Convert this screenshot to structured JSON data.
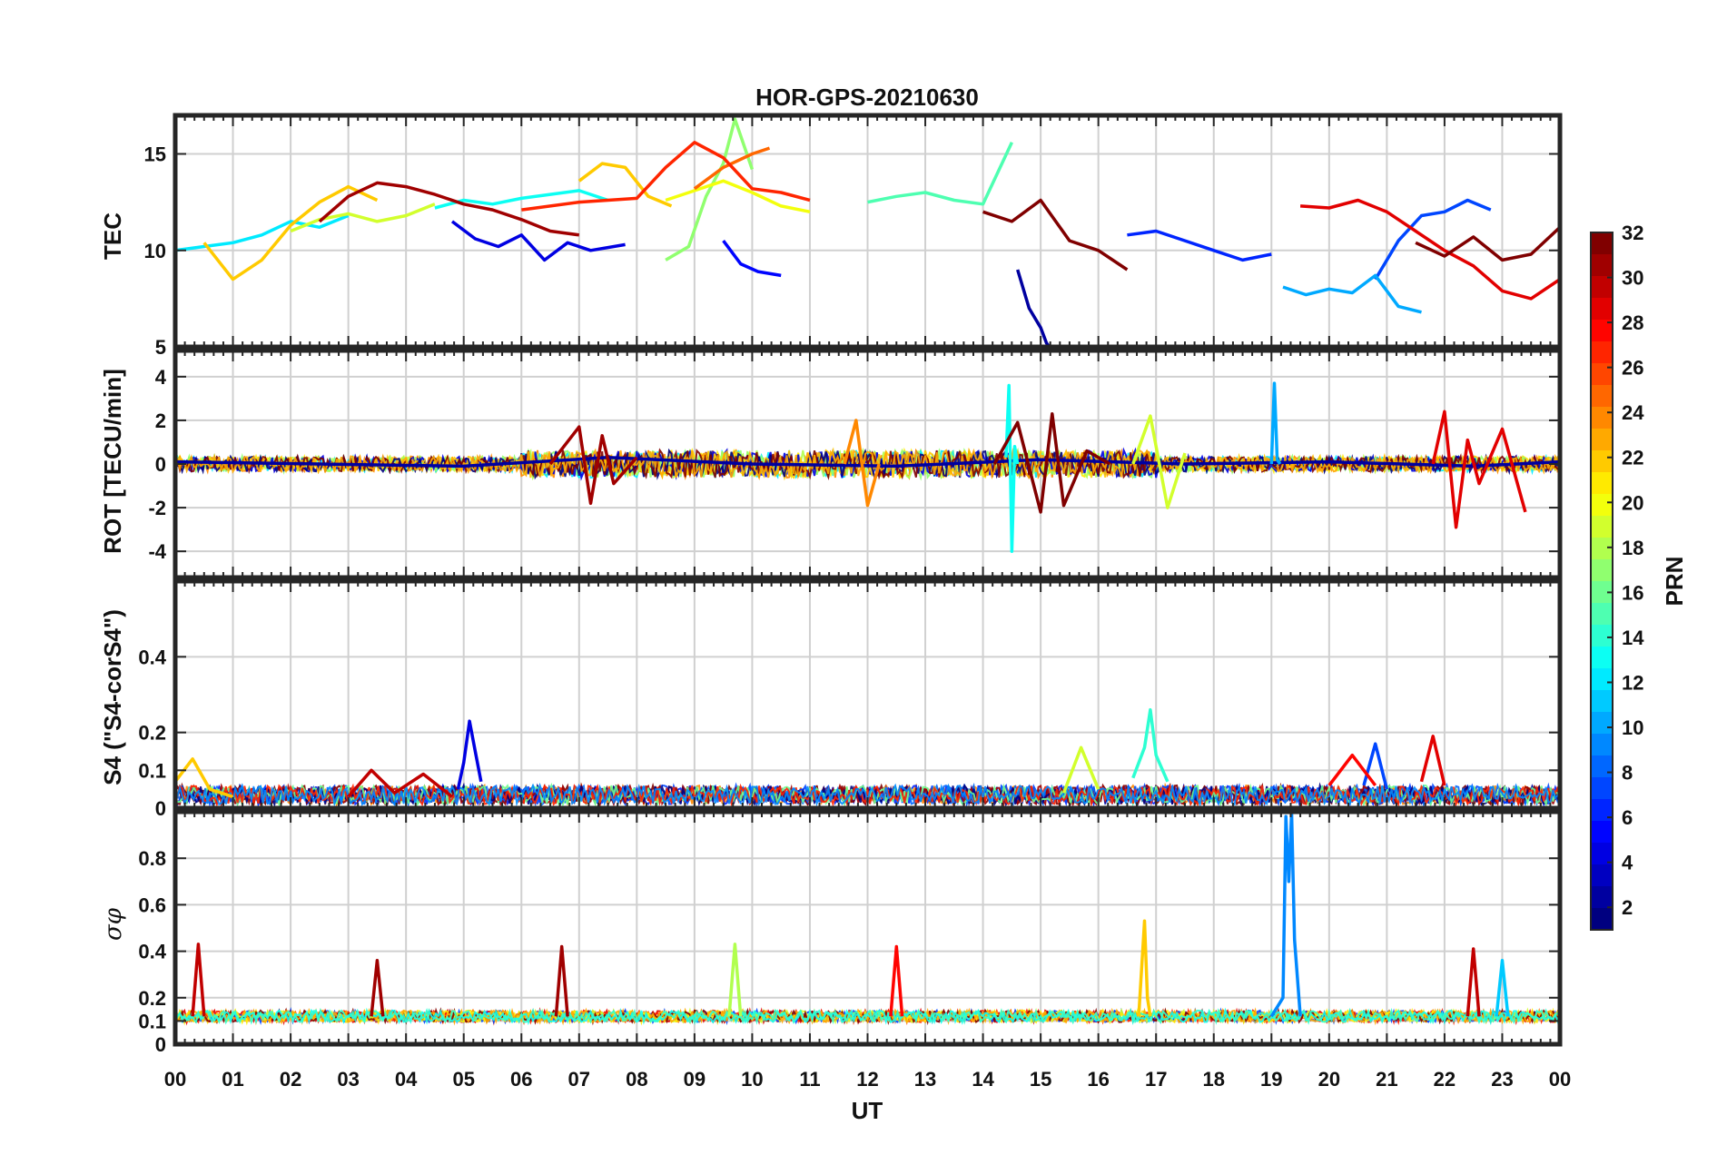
{
  "chart_data": {
    "type": "line",
    "title": "HOR-GPS-20210630",
    "xlabel": "UT",
    "x_ticks": [
      "00",
      "01",
      "02",
      "03",
      "04",
      "05",
      "06",
      "07",
      "08",
      "09",
      "10",
      "11",
      "12",
      "13",
      "14",
      "15",
      "16",
      "17",
      "18",
      "19",
      "20",
      "21",
      "22",
      "23",
      "00"
    ],
    "xlim": [
      0,
      24
    ],
    "grid": true,
    "panels": [
      {
        "id": "tec",
        "ylabel": "TEC",
        "ylim": [
          5,
          17
        ],
        "yticks": [
          5,
          10,
          15
        ],
        "series": [
          {
            "prn": 2,
            "x": [
              14.6,
              14.8,
              15.0,
              15.1,
              15.15
            ],
            "y": [
              9.0,
              7.0,
              6.0,
              5.2,
              5.0
            ]
          },
          {
            "prn": 4,
            "x": [
              4.8,
              5.2,
              5.6,
              6.0,
              6.4,
              6.8,
              7.2,
              7.8
            ],
            "y": [
              11.5,
              10.6,
              10.2,
              10.8,
              9.5,
              10.4,
              10.0,
              10.3
            ]
          },
          {
            "prn": 5,
            "x": [
              9.5,
              9.8,
              10.1,
              10.5
            ],
            "y": [
              10.5,
              9.3,
              8.9,
              8.7
            ]
          },
          {
            "prn": 6,
            "x": [
              16.5,
              17.0,
              17.5,
              18.0,
              18.5,
              19.0
            ],
            "y": [
              10.8,
              11.0,
              10.5,
              10.0,
              9.5,
              9.8
            ]
          },
          {
            "prn": 7,
            "x": [
              20.8,
              21.2,
              21.6,
              22.0,
              22.4,
              22.8
            ],
            "y": [
              8.5,
              10.5,
              11.8,
              12.0,
              12.6,
              12.1
            ]
          },
          {
            "prn": 10,
            "x": [
              19.2,
              19.6,
              20.0,
              20.4,
              20.8,
              21.2,
              21.6
            ],
            "y": [
              8.1,
              7.7,
              8.0,
              7.8,
              8.7,
              7.1,
              6.8
            ]
          },
          {
            "prn": 12,
            "x": [
              0.0,
              0.5,
              1.0,
              1.5,
              2.0,
              2.5,
              3.0
            ],
            "y": [
              10.0,
              10.2,
              10.4,
              10.8,
              11.5,
              11.2,
              11.8
            ]
          },
          {
            "prn": 13,
            "x": [
              4.5,
              5.0,
              5.5,
              6.0,
              6.5,
              7.0,
              7.5
            ],
            "y": [
              12.2,
              12.6,
              12.4,
              12.7,
              12.9,
              13.1,
              12.6
            ]
          },
          {
            "prn": 15,
            "x": [
              12.0,
              12.5,
              13.0,
              13.5,
              14.0,
              14.5
            ],
            "y": [
              12.5,
              12.8,
              13.0,
              12.6,
              12.4,
              15.6
            ]
          },
          {
            "prn": 17,
            "x": [
              8.5,
              8.9,
              9.2,
              9.5,
              9.7,
              10.0
            ],
            "y": [
              9.5,
              10.2,
              12.8,
              14.5,
              16.8,
              14.2
            ]
          },
          {
            "prn": 19,
            "x": [
              2.0,
              2.5,
              3.0,
              3.5,
              4.0,
              4.5
            ],
            "y": [
              11.0,
              11.6,
              11.9,
              11.5,
              11.8,
              12.4
            ]
          },
          {
            "prn": 20,
            "x": [
              8.5,
              9.0,
              9.5,
              10.0,
              10.5,
              11.0
            ],
            "y": [
              12.6,
              13.1,
              13.6,
              13.0,
              12.3,
              12.0
            ]
          },
          {
            "prn": 22,
            "x": [
              0.5,
              1.0,
              1.5,
              2.0,
              2.5,
              3.0,
              3.5
            ],
            "y": [
              10.4,
              8.5,
              9.5,
              11.3,
              12.5,
              13.3,
              12.6
            ]
          },
          {
            "prn": 22,
            "x": [
              7.0,
              7.4,
              7.8,
              8.2,
              8.6
            ],
            "y": [
              13.6,
              14.5,
              14.3,
              12.8,
              12.3
            ]
          },
          {
            "prn": 25,
            "x": [
              9.0,
              9.5,
              10.0,
              10.3
            ],
            "y": [
              13.2,
              14.3,
              15.0,
              15.3
            ]
          },
          {
            "prn": 27,
            "x": [
              6.0,
              7.0,
              8.0,
              8.5,
              9.0,
              9.5,
              10.0,
              10.5,
              11.0
            ],
            "y": [
              12.1,
              12.5,
              12.7,
              14.3,
              15.6,
              14.8,
              13.2,
              13.0,
              12.6
            ]
          },
          {
            "prn": 29,
            "x": [
              19.5,
              20.0,
              20.5,
              21.0,
              21.5,
              22.0,
              22.5,
              23.0,
              23.5,
              24.0
            ],
            "y": [
              12.3,
              12.2,
              12.6,
              12.0,
              11.0,
              10.0,
              9.2,
              7.9,
              7.5,
              8.5
            ]
          },
          {
            "prn": 31,
            "x": [
              2.5,
              3.0,
              3.5,
              4.0,
              4.5,
              5.0,
              5.5,
              6.0,
              6.5,
              7.0
            ],
            "y": [
              11.5,
              12.8,
              13.5,
              13.3,
              12.9,
              12.4,
              12.1,
              11.6,
              11.0,
              10.8
            ]
          },
          {
            "prn": 32,
            "x": [
              14.0,
              14.5,
              15.0,
              15.5,
              16.0,
              16.5
            ],
            "y": [
              12.0,
              11.5,
              12.6,
              10.5,
              10.0,
              9.0
            ]
          },
          {
            "prn": 32,
            "x": [
              21.5,
              22.0,
              22.5,
              23.0,
              23.5,
              24.0
            ],
            "y": [
              10.4,
              9.7,
              10.7,
              9.5,
              9.8,
              11.2
            ]
          }
        ]
      },
      {
        "id": "rot",
        "ylabel": "ROT [TECU/min]",
        "ylim": [
          -5.2,
          5.2
        ],
        "yticks": [
          -4,
          -2,
          0,
          2,
          4
        ],
        "series": [
          {
            "prn": 2,
            "x": [
              0.0,
              2.5,
              5.0,
              7.5,
              10.0,
              12.5,
              15.0,
              17.5,
              20.0,
              22.5,
              24.0
            ],
            "y": [
              0.1,
              0.0,
              -0.1,
              0.3,
              0.0,
              -0.1,
              0.2,
              0.0,
              0.1,
              -0.1,
              0.1
            ]
          },
          {
            "prn": 13,
            "x": [
              14.4,
              14.45,
              14.5,
              14.55,
              14.6
            ],
            "y": [
              0.3,
              3.6,
              -4.0,
              0.8,
              0.0
            ]
          },
          {
            "prn": 10,
            "x": [
              19.0,
              19.05,
              19.1,
              19.15
            ],
            "y": [
              0.0,
              3.7,
              0.2,
              0.0
            ]
          },
          {
            "prn": 31,
            "x": [
              6.5,
              7.0,
              7.2,
              7.4,
              7.6,
              8.0
            ],
            "y": [
              0.0,
              1.7,
              -1.8,
              1.3,
              -0.9,
              0.3
            ]
          },
          {
            "prn": 32,
            "x": [
              14.2,
              14.6,
              15.0,
              15.2,
              15.4,
              15.8,
              16.2
            ],
            "y": [
              0.0,
              1.9,
              -2.2,
              2.3,
              -1.9,
              0.6,
              0.0
            ]
          },
          {
            "prn": 19,
            "x": [
              16.6,
              16.9,
              17.2,
              17.5
            ],
            "y": [
              0.0,
              2.2,
              -2.0,
              0.5
            ]
          },
          {
            "prn": 24,
            "x": [
              11.6,
              11.8,
              12.0,
              12.2
            ],
            "y": [
              0.0,
              2.0,
              -1.9,
              0.0
            ]
          },
          {
            "prn": 29,
            "x": [
              21.8,
              22.0,
              22.2,
              22.4,
              22.6,
              23.0,
              23.4
            ],
            "y": [
              0.0,
              2.4,
              -2.9,
              1.1,
              -0.9,
              1.6,
              -2.2
            ]
          }
        ]
      },
      {
        "id": "s4",
        "ylabel": "S4 (\"S4-corS4\")",
        "ylim": [
          0,
          0.6
        ],
        "yticks": [
          0,
          0.1,
          0.2,
          0.4
        ],
        "series": [
          {
            "prn": 4,
            "x": [
              4.9,
              5.0,
              5.1,
              5.2,
              5.3
            ],
            "y": [
              0.05,
              0.12,
              0.23,
              0.15,
              0.07
            ]
          },
          {
            "prn": 14,
            "x": [
              16.6,
              16.8,
              16.9,
              17.0,
              17.2
            ],
            "y": [
              0.08,
              0.16,
              0.26,
              0.14,
              0.07
            ]
          },
          {
            "prn": 29,
            "x": [
              21.6,
              21.8,
              22.0
            ],
            "y": [
              0.07,
              0.19,
              0.06
            ]
          },
          {
            "prn": 7,
            "x": [
              20.6,
              20.8,
              21.0
            ],
            "y": [
              0.06,
              0.17,
              0.05
            ]
          },
          {
            "prn": 22,
            "x": [
              0.0,
              0.3,
              0.6,
              1.0
            ],
            "y": [
              0.07,
              0.13,
              0.05,
              0.03
            ]
          },
          {
            "prn": 30,
            "x": [
              3.0,
              3.4,
              3.8,
              4.3,
              4.8
            ],
            "y": [
              0.03,
              0.1,
              0.04,
              0.09,
              0.03
            ]
          },
          {
            "prn": 19,
            "x": [
              15.4,
              15.7,
              16.0
            ],
            "y": [
              0.04,
              0.16,
              0.05
            ]
          },
          {
            "prn": 28,
            "x": [
              20.0,
              20.4,
              20.8
            ],
            "y": [
              0.06,
              0.14,
              0.06
            ]
          }
        ]
      },
      {
        "id": "sigma_phi",
        "ylabel": "σφ",
        "ylim": [
          0,
          1.0
        ],
        "yticks": [
          0,
          0.1,
          0.2,
          0.4,
          0.6,
          0.8
        ],
        "series": [
          {
            "prn": 9,
            "x": [
              19.0,
              19.2,
              19.25,
              19.3,
              19.35,
              19.4,
              19.5
            ],
            "y": [
              0.12,
              0.2,
              0.98,
              0.7,
              1.0,
              0.45,
              0.12
            ]
          },
          {
            "prn": 22,
            "x": [
              16.7,
              16.8,
              16.85,
              16.9
            ],
            "y": [
              0.12,
              0.53,
              0.2,
              0.12
            ]
          },
          {
            "prn": 30,
            "x": [
              0.3,
              0.4,
              0.5
            ],
            "y": [
              0.12,
              0.43,
              0.12
            ]
          },
          {
            "prn": 31,
            "x": [
              3.4,
              3.5,
              3.6
            ],
            "y": [
              0.12,
              0.36,
              0.12
            ]
          },
          {
            "prn": 31,
            "x": [
              6.6,
              6.7,
              6.8
            ],
            "y": [
              0.12,
              0.42,
              0.12
            ]
          },
          {
            "prn": 28,
            "x": [
              12.4,
              12.5,
              12.6
            ],
            "y": [
              0.12,
              0.42,
              0.12
            ]
          },
          {
            "prn": 18,
            "x": [
              9.6,
              9.7,
              9.8
            ],
            "y": [
              0.12,
              0.43,
              0.12
            ]
          },
          {
            "prn": 30,
            "x": [
              22.4,
              22.5,
              22.6
            ],
            "y": [
              0.12,
              0.41,
              0.12
            ]
          },
          {
            "prn": 11,
            "x": [
              22.9,
              23.0,
              23.1
            ],
            "y": [
              0.12,
              0.36,
              0.12
            ]
          }
        ]
      }
    ],
    "colorbar": {
      "label": "PRN",
      "ticks": [
        2,
        4,
        6,
        8,
        10,
        12,
        14,
        16,
        18,
        20,
        22,
        24,
        26,
        28,
        30,
        32
      ],
      "range": [
        1,
        32
      ],
      "colormap": "jet"
    }
  }
}
